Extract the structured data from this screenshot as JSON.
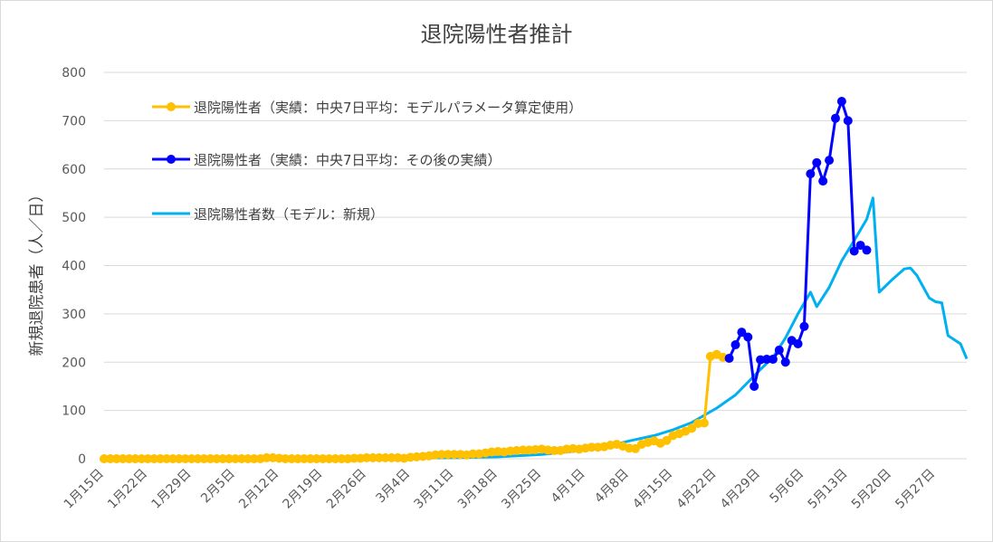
{
  "chart_data": {
    "type": "line",
    "title": "退院陽性者推計",
    "xlabel": "",
    "ylabel": "新規退院患者（人／日）",
    "ylim": [
      0,
      800
    ],
    "yticks": [
      0,
      100,
      200,
      300,
      400,
      500,
      600,
      700,
      800
    ],
    "x_start": "2020-01-15",
    "x_end": "2020-06-01",
    "x_ticks": [
      "1月15日",
      "1月22日",
      "1月29日",
      "2月5日",
      "2月12日",
      "2月19日",
      "2月26日",
      "3月4日",
      "3月11日",
      "3月18日",
      "3月25日",
      "4月1日",
      "4月8日",
      "4月15日",
      "4月22日",
      "4月29日",
      "5月6日",
      "5月13日",
      "5月20日",
      "5月27日"
    ],
    "grid": true,
    "legend_position": "top-left",
    "series": [
      {
        "name": "退院陽性者（実績：中央7日平均：モデルパラメータ算定使用）",
        "color": "#FFC000",
        "marker": true,
        "points": [
          [
            "1月15日",
            0
          ],
          [
            "1月16日",
            0
          ],
          [
            "1月17日",
            0
          ],
          [
            "1月18日",
            0
          ],
          [
            "1月19日",
            0
          ],
          [
            "1月20日",
            0
          ],
          [
            "1月21日",
            0
          ],
          [
            "1月22日",
            0
          ],
          [
            "1月23日",
            0
          ],
          [
            "1月24日",
            0
          ],
          [
            "1月25日",
            0
          ],
          [
            "1月26日",
            0
          ],
          [
            "1月27日",
            0
          ],
          [
            "1月28日",
            0
          ],
          [
            "1月29日",
            0
          ],
          [
            "1月30日",
            0
          ],
          [
            "1月31日",
            0
          ],
          [
            "2月1日",
            0
          ],
          [
            "2月2日",
            0
          ],
          [
            "2月3日",
            0
          ],
          [
            "2月4日",
            0
          ],
          [
            "2月5日",
            0
          ],
          [
            "2月6日",
            0
          ],
          [
            "2月7日",
            0
          ],
          [
            "2月8日",
            0
          ],
          [
            "2月9日",
            0
          ],
          [
            "2月10日",
            2
          ],
          [
            "2月11日",
            2
          ],
          [
            "2月12日",
            1
          ],
          [
            "2月13日",
            0
          ],
          [
            "2月14日",
            0
          ],
          [
            "2月15日",
            0
          ],
          [
            "2月16日",
            0
          ],
          [
            "2月17日",
            0
          ],
          [
            "2月18日",
            0
          ],
          [
            "2月19日",
            0
          ],
          [
            "2月20日",
            0
          ],
          [
            "2月21日",
            0
          ],
          [
            "2月22日",
            0
          ],
          [
            "2月23日",
            0
          ],
          [
            "2月24日",
            1
          ],
          [
            "2月25日",
            1
          ],
          [
            "2月26日",
            2
          ],
          [
            "2月27日",
            2
          ],
          [
            "2月28日",
            2
          ],
          [
            "2月29日",
            2
          ],
          [
            "3月1日",
            2
          ],
          [
            "3月2日",
            2
          ],
          [
            "3月3日",
            1
          ],
          [
            "3月4日",
            3
          ],
          [
            "3月5日",
            4
          ],
          [
            "3月6日",
            5
          ],
          [
            "3月7日",
            6
          ],
          [
            "3月8日",
            8
          ],
          [
            "3月9日",
            9
          ],
          [
            "3月10日",
            9
          ],
          [
            "3月11日",
            9
          ],
          [
            "3月12日",
            9
          ],
          [
            "3月13日",
            8
          ],
          [
            "3月14日",
            10
          ],
          [
            "3月15日",
            10
          ],
          [
            "3月16日",
            12
          ],
          [
            "3月17日",
            14
          ],
          [
            "3月18日",
            15
          ],
          [
            "3月19日",
            14
          ],
          [
            "3月20日",
            16
          ],
          [
            "3月21日",
            17
          ],
          [
            "3月22日",
            18
          ],
          [
            "3月23日",
            18
          ],
          [
            "3月24日",
            19
          ],
          [
            "3月25日",
            20
          ],
          [
            "3月26日",
            18
          ],
          [
            "3月27日",
            17
          ],
          [
            "3月28日",
            17
          ],
          [
            "3月29日",
            20
          ],
          [
            "3月30日",
            21
          ],
          [
            "3月31日",
            20
          ],
          [
            "4月1日",
            22
          ],
          [
            "4月2日",
            24
          ],
          [
            "4月3日",
            24
          ],
          [
            "4月4日",
            25
          ],
          [
            "4月5日",
            28
          ],
          [
            "4月6日",
            30
          ],
          [
            "4月7日",
            26
          ],
          [
            "4月8日",
            22
          ],
          [
            "4月9日",
            21
          ],
          [
            "4月10日",
            30
          ],
          [
            "4月11日",
            34
          ],
          [
            "4月12日",
            37
          ],
          [
            "4月13日",
            32
          ],
          [
            "4月14日",
            38
          ],
          [
            "4月15日",
            48
          ],
          [
            "4月16日",
            52
          ],
          [
            "4月17日",
            57
          ],
          [
            "4月18日",
            63
          ],
          [
            "4月19日",
            73
          ],
          [
            "4月20日",
            74
          ],
          [
            "4月21日",
            212
          ],
          [
            "4月22日",
            216
          ],
          [
            "4月23日",
            210
          ]
        ]
      },
      {
        "name": "退院陽性者（実績：中央7日平均：その後の実績）",
        "color": "#0000FF",
        "marker": true,
        "points": [
          [
            "4月24日",
            208
          ],
          [
            "4月25日",
            236
          ],
          [
            "4月26日",
            262
          ],
          [
            "4月27日",
            252
          ],
          [
            "4月28日",
            150
          ],
          [
            "4月29日",
            205
          ],
          [
            "4月30日",
            206
          ],
          [
            "5月1日",
            206
          ],
          [
            "5月2日",
            225
          ],
          [
            "5月3日",
            200
          ],
          [
            "5月4日",
            245
          ],
          [
            "5月5日",
            238
          ],
          [
            "5月6日",
            274
          ],
          [
            "5月7日",
            590
          ],
          [
            "5月8日",
            613
          ],
          [
            "5月9日",
            575
          ],
          [
            "5月10日",
            618
          ],
          [
            "5月11日",
            705
          ],
          [
            "5月12日",
            740
          ],
          [
            "5月13日",
            700
          ],
          [
            "5月14日",
            430
          ],
          [
            "5月15日",
            442
          ],
          [
            "5月16日",
            432
          ]
        ]
      },
      {
        "name": "退院陽性者数（モデル：新規）",
        "color": "#00B0F0",
        "marker": false,
        "points": [
          [
            "2月15日",
            0
          ],
          [
            "2月26日",
            1
          ],
          [
            "3月11日",
            2
          ],
          [
            "3月18日",
            4
          ],
          [
            "3月25日",
            9
          ],
          [
            "4月1日",
            18
          ],
          [
            "4月5日",
            27
          ],
          [
            "4月8日",
            37
          ],
          [
            "4月12日",
            48
          ],
          [
            "4月15日",
            60
          ],
          [
            "4月18日",
            75
          ],
          [
            "4月22日",
            105
          ],
          [
            "4月25日",
            132
          ],
          [
            "4月29日",
            185
          ],
          [
            "5月1日",
            210
          ],
          [
            "5月3日",
            250
          ],
          [
            "5月5日",
            300
          ],
          [
            "5月7日",
            345
          ],
          [
            "5月8日",
            315
          ],
          [
            "5月10日",
            355
          ],
          [
            "5月12日",
            410
          ],
          [
            "5月14日",
            452
          ],
          [
            "5月16日",
            496
          ],
          [
            "5月17日",
            540
          ],
          [
            "5月18日",
            345
          ],
          [
            "5月20日",
            370
          ],
          [
            "5月22日",
            393
          ],
          [
            "5月23日",
            395
          ],
          [
            "5月24日",
            380
          ],
          [
            "5月26日",
            333
          ],
          [
            "5月27日",
            325
          ],
          [
            "5月28日",
            323
          ],
          [
            "5月29日",
            255
          ],
          [
            "5月31日",
            238
          ],
          [
            "6月1日",
            207
          ]
        ]
      }
    ]
  }
}
